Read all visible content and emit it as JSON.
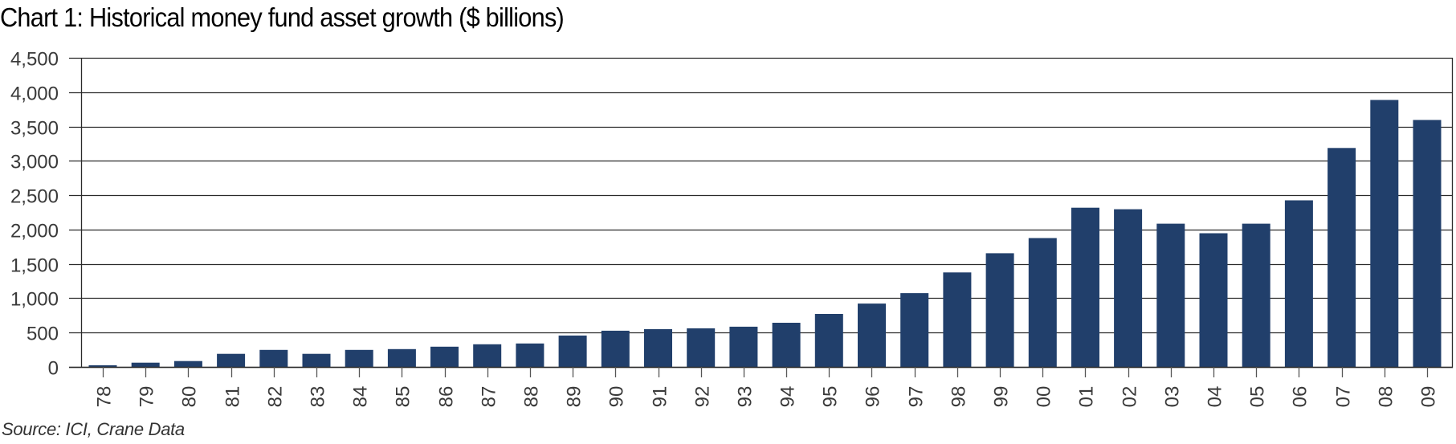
{
  "chart_data": {
    "type": "bar",
    "title": "Chart 1: Historical money fund asset growth ($ billions)",
    "xlabel": "",
    "ylabel": "",
    "source": "Source: ICI, Crane Data",
    "ylim": [
      0,
      4500
    ],
    "yticks": [
      0,
      500,
      1000,
      1500,
      2000,
      2500,
      3000,
      3500,
      4000,
      4500
    ],
    "ytick_labels": [
      "0",
      "500",
      "1,000",
      "1,500",
      "2,000",
      "2,500",
      "3,000",
      "3,500",
      "4,000",
      "4,500"
    ],
    "grid": true,
    "legend": "none",
    "bar_color": "#213F6B",
    "categories": [
      "78",
      "79",
      "80",
      "81",
      "82",
      "83",
      "84",
      "85",
      "86",
      "87",
      "88",
      "89",
      "90",
      "91",
      "92",
      "93",
      "94",
      "95",
      "96",
      "97",
      "98",
      "99",
      "00",
      "01",
      "02",
      "03",
      "04",
      "05",
      "06",
      "07",
      "08",
      "09"
    ],
    "values": [
      25,
      62,
      85,
      190,
      248,
      190,
      248,
      260,
      295,
      330,
      341,
      457,
      527,
      550,
      562,
      585,
      643,
      771,
      922,
      1074,
      1376,
      1655,
      1876,
      2318,
      2295,
      2085,
      1946,
      2085,
      2425,
      3187,
      3886,
      3595
    ]
  }
}
